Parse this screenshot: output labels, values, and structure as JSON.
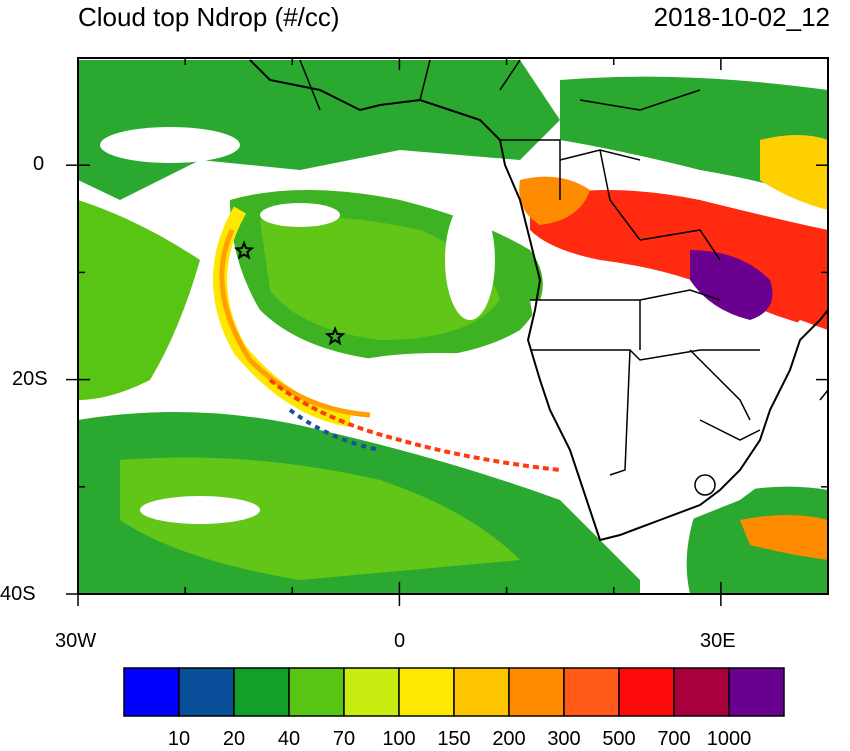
{
  "header": {
    "title": "Cloud top Ndrop (#/cc)",
    "timestamp": "2018-10-02_12"
  },
  "map": {
    "lon_range": [
      -30,
      40
    ],
    "lat_range": [
      -40,
      10
    ],
    "x_ticks": [
      "30W",
      "0",
      "30E"
    ],
    "y_ticks": [
      "0",
      "20S",
      "40S"
    ],
    "markers": [
      {
        "name": "star-marker-1",
        "lon": -14.5,
        "lat": -8
      },
      {
        "name": "star-marker-2",
        "lon": -6,
        "lat": -16
      }
    ]
  },
  "colorbar": {
    "colors": [
      "#0000ff",
      "#0a4f9a",
      "#12a02a",
      "#58c414",
      "#c8ec10",
      "#ffe800",
      "#ffc400",
      "#ff8c00",
      "#ff5a18",
      "#ff0a0a",
      "#a8003c",
      "#6a0090"
    ],
    "labels": [
      "10",
      "20",
      "40",
      "70",
      "100",
      "150",
      "200",
      "300",
      "500",
      "700",
      "1000"
    ]
  }
}
